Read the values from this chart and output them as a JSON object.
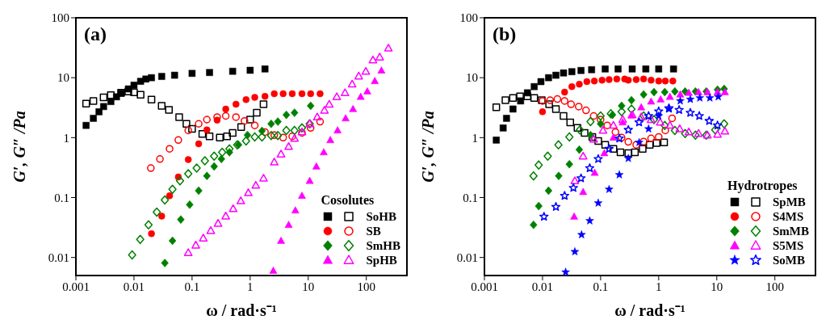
{
  "chart_data": [
    {
      "type": "scatter",
      "annotations": [
        "(a)"
      ],
      "xlabel": "ω / rad·s⁻¹",
      "ylabel": "G′, G″ /Pa",
      "legend_title": "Cosolutes",
      "legend": "bottom right",
      "log": "xy",
      "xlim": [
        0.001,
        500
      ],
      "ylim": [
        0.005,
        100
      ],
      "xticks": [
        0.001,
        0.01,
        0.1,
        1,
        10,
        100
      ],
      "yticks": [
        0.01,
        0.1,
        1,
        10,
        100
      ],
      "series": [
        {
          "marker": "square",
          "color": "#000000",
          "x": [
            0.0015,
            0.002,
            0.0025,
            0.003,
            0.004,
            0.005,
            0.006,
            0.008,
            0.01,
            0.013,
            0.016,
            0.02,
            0.03,
            0.05,
            0.1,
            0.2,
            0.5,
            1,
            1.8
          ],
          "values": [
            1.6,
            2.1,
            2.7,
            3.3,
            4,
            4.8,
            5.5,
            6.5,
            7.5,
            8.7,
            9.5,
            10,
            10.5,
            11,
            11.8,
            12.2,
            12.8,
            13.3,
            14
          ]
        },
        {
          "name": "SoHB",
          "marker": "square",
          "color": "#000000",
          "x": [
            0.0015,
            0.002,
            0.003,
            0.004,
            0.006,
            0.008,
            0.01,
            0.013,
            0.02,
            0.03,
            0.04,
            0.06,
            0.08,
            0.1,
            0.15,
            0.2,
            0.3,
            0.4,
            0.5,
            0.7,
            1,
            1.3,
            1.7
          ],
          "values": [
            3.7,
            4.1,
            4.7,
            5.1,
            5.6,
            5.9,
            5.7,
            5.2,
            4.3,
            3.4,
            2.9,
            2.2,
            1.7,
            1.4,
            1.15,
            1.05,
            1,
            1.05,
            1.2,
            1.5,
            2,
            2.6,
            3.6
          ]
        },
        {
          "marker": "circle",
          "color": "#ff0000",
          "x": [
            0.02,
            0.03,
            0.041,
            0.058,
            0.086,
            0.13,
            0.18,
            0.27,
            0.38,
            0.57,
            0.85,
            1.2,
            1.8,
            2.6,
            3.7,
            5.3,
            7.8,
            11,
            16
          ],
          "values": [
            0.025,
            0.049,
            0.107,
            0.22,
            0.43,
            0.79,
            1.35,
            1.96,
            3,
            3.6,
            4.3,
            4.7,
            4.9,
            5.4,
            5.4,
            5.4,
            5.4,
            5.4,
            5.4
          ]
        },
        {
          "name": "SB",
          "marker": "circle",
          "color": "#ff0000",
          "x": [
            0.0195,
            0.028,
            0.041,
            0.058,
            0.086,
            0.13,
            0.18,
            0.27,
            0.38,
            0.57,
            0.8,
            1.2,
            1.8,
            2.6,
            3.7,
            5.3,
            7.8,
            11,
            16
          ],
          "values": [
            0.31,
            0.44,
            0.65,
            0.91,
            1.32,
            1.7,
            2,
            2.2,
            2.3,
            2.2,
            1.9,
            1.6,
            1.24,
            1.1,
            1,
            1.05,
            1.2,
            1.45,
            1.85
          ]
        },
        {
          "marker": "diamond",
          "color": "#008000",
          "x": [
            0.034,
            0.046,
            0.064,
            0.091,
            0.13,
            0.18,
            0.24,
            0.32,
            0.44,
            0.63,
            0.9,
            1.6,
            2.3,
            3,
            4.2,
            5.8,
            11
          ],
          "values": [
            0.0081,
            0.019,
            0.043,
            0.076,
            0.13,
            0.23,
            0.33,
            0.44,
            0.57,
            0.76,
            1.1,
            1.3,
            1.7,
            1.85,
            2.4,
            2.6,
            3.4
          ]
        },
        {
          "name": "SmHB",
          "marker": "diamond",
          "color": "#008000",
          "x": [
            0.0093,
            0.0128,
            0.0178,
            0.0247,
            0.034,
            0.046,
            0.062,
            0.086,
            0.12,
            0.166,
            0.24,
            0.33,
            0.44,
            0.6,
            0.85,
            1.2,
            1.6,
            2.3,
            3,
            4.2,
            5.8,
            7.8,
            10.6
          ],
          "values": [
            0.011,
            0.02,
            0.035,
            0.057,
            0.091,
            0.137,
            0.19,
            0.25,
            0.31,
            0.41,
            0.49,
            0.57,
            0.65,
            0.76,
            0.88,
            1.03,
            1.03,
            1.08,
            1.08,
            1.32,
            1.32,
            1.45,
            1.7
          ]
        },
        {
          "marker": "triangle",
          "color": "#ff00ff",
          "x": [
            2.5,
            3.4,
            4.6,
            6,
            7.8,
            10.6,
            13.8,
            18.5,
            24,
            32,
            44,
            59,
            80,
            104,
            140,
            182
          ],
          "values": [
            0.006,
            0.019,
            0.035,
            0.061,
            0.107,
            0.19,
            0.33,
            0.57,
            0.91,
            1.32,
            2.1,
            3,
            4.8,
            5.9,
            8.8,
            13.2
          ]
        },
        {
          "name": "SpHB",
          "marker": "triangle",
          "color": "#ff00ff",
          "x": [
            0.086,
            0.116,
            0.156,
            0.21,
            0.28,
            0.38,
            0.51,
            0.69,
            0.93,
            1.25,
            1.7,
            2.6,
            3.4,
            4.6,
            5.8,
            7.8,
            10.6,
            14.3,
            19,
            23,
            31,
            43,
            57,
            74,
            98,
            130,
            170,
            240
          ],
          "values": [
            0.012,
            0.016,
            0.021,
            0.028,
            0.037,
            0.049,
            0.065,
            0.088,
            0.12,
            0.16,
            0.21,
            0.39,
            0.53,
            0.71,
            0.97,
            1.24,
            1.7,
            2.2,
            2.85,
            3.6,
            4.8,
            5.6,
            7.8,
            10.6,
            12.7,
            19.7,
            22,
            31
          ]
        }
      ]
    },
    {
      "type": "scatter",
      "annotations": [
        "(b)"
      ],
      "xlabel": "ω / rad·s⁻¹",
      "ylabel": "G′, G″ /Pa",
      "legend_title": "Hydrotropes",
      "legend": "bottom right",
      "log": "xy",
      "xlim": [
        0.001,
        500
      ],
      "ylim": [
        0.005,
        100
      ],
      "xticks": [
        0.001,
        0.01,
        0.1,
        1,
        10,
        100
      ],
      "yticks": [
        0.01,
        0.1,
        1,
        10,
        100
      ],
      "series": [
        {
          "marker": "square",
          "color": "#000000",
          "x": [
            0.0016,
            0.0021,
            0.0024,
            0.0031,
            0.0042,
            0.0055,
            0.0072,
            0.0094,
            0.0127,
            0.017,
            0.023,
            0.032,
            0.046,
            0.07,
            0.12,
            0.2,
            0.35,
            0.6,
            1,
            1.8
          ],
          "values": [
            0.91,
            1.45,
            2.1,
            3,
            4.1,
            5.6,
            7.1,
            8.6,
            10,
            11,
            12,
            12.6,
            13.2,
            13.6,
            14,
            14,
            14,
            14,
            14,
            14
          ]
        },
        {
          "name": "SpMB",
          "marker": "square",
          "color": "#000000",
          "x": [
            0.0016,
            0.0023,
            0.0031,
            0.0041,
            0.0055,
            0.0072,
            0.0097,
            0.013,
            0.017,
            0.023,
            0.03,
            0.04,
            0.053,
            0.072,
            0.091,
            0.12,
            0.166,
            0.22,
            0.3,
            0.39,
            0.53,
            0.7,
            0.92,
            1.24
          ],
          "values": [
            3.2,
            4.2,
            4.6,
            4.9,
            4.9,
            4.6,
            4.2,
            3.6,
            3,
            2.3,
            1.8,
            1.45,
            1.2,
            1.03,
            0.88,
            0.76,
            0.65,
            0.57,
            0.55,
            0.57,
            0.65,
            0.76,
            0.81,
            0.83
          ]
        },
        {
          "marker": "circle",
          "color": "#ff0000",
          "x": [
            0.01,
            0.024,
            0.032,
            0.043,
            0.058,
            0.078,
            0.106,
            0.14,
            0.19,
            0.26,
            0.3,
            0.41,
            0.55,
            0.74,
            1,
            1.3,
            1.75
          ],
          "values": [
            2.7,
            5.75,
            7.1,
            7.8,
            8.6,
            8.8,
            9.1,
            9.3,
            9.5,
            9.5,
            9.1,
            9.3,
            9.5,
            9.1,
            8.8,
            8.8,
            8.8
          ]
        },
        {
          "name": "S4MS",
          "marker": "circle",
          "color": "#ff0000",
          "x": [
            0.01,
            0.0135,
            0.018,
            0.024,
            0.031,
            0.042,
            0.056,
            0.076,
            0.1,
            0.13,
            0.18,
            0.23,
            0.3,
            0.41,
            0.55,
            0.74,
            1,
            1.3,
            1.7
          ],
          "values": [
            4.1,
            4.2,
            4.4,
            4.1,
            3.6,
            3.3,
            2.85,
            2.3,
            2,
            1.6,
            1.24,
            1,
            0.85,
            0.76,
            0.86,
            0.97,
            1.03,
            1.32,
            2.1
          ]
        },
        {
          "marker": "diamond",
          "color": "#008000",
          "x": [
            0.007,
            0.0086,
            0.0127,
            0.019,
            0.029,
            0.043,
            0.067,
            0.1,
            0.16,
            0.23,
            0.34,
            0.55,
            0.83,
            1.27,
            1.9,
            2.85,
            4.3,
            6.6,
            10.3,
            13.4
          ],
          "values": [
            0.035,
            0.072,
            0.13,
            0.23,
            0.36,
            0.63,
            1.1,
            1.7,
            2.4,
            3.4,
            4.2,
            5.25,
            5.75,
            5.75,
            5.9,
            5.9,
            5.9,
            5.9,
            6.3,
            6.5
          ]
        },
        {
          "name": "SmMB",
          "marker": "diamond",
          "color": "#008000",
          "x": [
            0.007,
            0.0086,
            0.0123,
            0.0188,
            0.029,
            0.044,
            0.067,
            0.1,
            0.15,
            0.23,
            0.34,
            0.55,
            0.83,
            1.27,
            1.9,
            2.85,
            4.3,
            6.6,
            9.4,
            13.4
          ],
          "values": [
            0.23,
            0.35,
            0.49,
            0.76,
            1.03,
            1.35,
            1.85,
            2.3,
            2.5,
            2.7,
            3,
            2.3,
            2,
            1.6,
            1.32,
            1.17,
            1.1,
            1.1,
            1.35,
            1.7
          ]
        },
        {
          "marker": "triangle",
          "color": "#ff00ff",
          "x": [
            0.035,
            0.05,
            0.079,
            0.116,
            0.166,
            0.24,
            0.34,
            0.5,
            0.74,
            1.08,
            1.56,
            2.35,
            3.3,
            4.85,
            6.9,
            10.3,
            13.8
          ],
          "values": [
            0.048,
            0.124,
            0.26,
            0.55,
            1,
            1.8,
            2.35,
            3.2,
            4,
            4.35,
            4.8,
            5.25,
            5.6,
            5.75,
            5.75,
            5.75,
            5.75
          ]
        },
        {
          "name": "S5MS",
          "marker": "triangle",
          "color": "#ff00ff",
          "x": [
            0.036,
            0.05,
            0.076,
            0.11,
            0.166,
            0.24,
            0.35,
            0.5,
            0.74,
            1.06,
            1.56,
            2.3,
            3.3,
            4.85,
            6.9,
            10.3,
            13.8
          ],
          "values": [
            0.19,
            0.49,
            0.94,
            1.32,
            1.6,
            2,
            2.4,
            2.2,
            2,
            1.8,
            1.6,
            1.4,
            1.24,
            1.17,
            1.1,
            1.13,
            1.28
          ]
        },
        {
          "marker": "star",
          "color": "#0000ff",
          "x": [
            0.025,
            0.036,
            0.047,
            0.065,
            0.091,
            0.14,
            0.21,
            0.3,
            0.46,
            0.67,
            1,
            1.5,
            2.35,
            3.5,
            5.1,
            7.6,
            10.6
          ],
          "values": [
            0.0057,
            0.0125,
            0.024,
            0.041,
            0.081,
            0.137,
            0.24,
            0.45,
            0.83,
            1.4,
            2.3,
            3,
            4.1,
            4.35,
            4.6,
            4.6,
            4.8
          ]
        },
        {
          "name": "SoMB",
          "marker": "star",
          "color": "#0000ff",
          "x": [
            0.0106,
            0.017,
            0.024,
            0.034,
            0.046,
            0.065,
            0.091,
            0.14,
            0.21,
            0.3,
            0.46,
            0.67,
            1,
            1.5,
            2.25,
            3.5,
            5,
            7.4,
            10.3
          ],
          "values": [
            0.048,
            0.07,
            0.107,
            0.145,
            0.21,
            0.31,
            0.44,
            0.65,
            0.97,
            1.35,
            1.8,
            2.3,
            2.75,
            3.1,
            2.9,
            2.6,
            2.3,
            1.9,
            1.6
          ]
        }
      ]
    }
  ]
}
